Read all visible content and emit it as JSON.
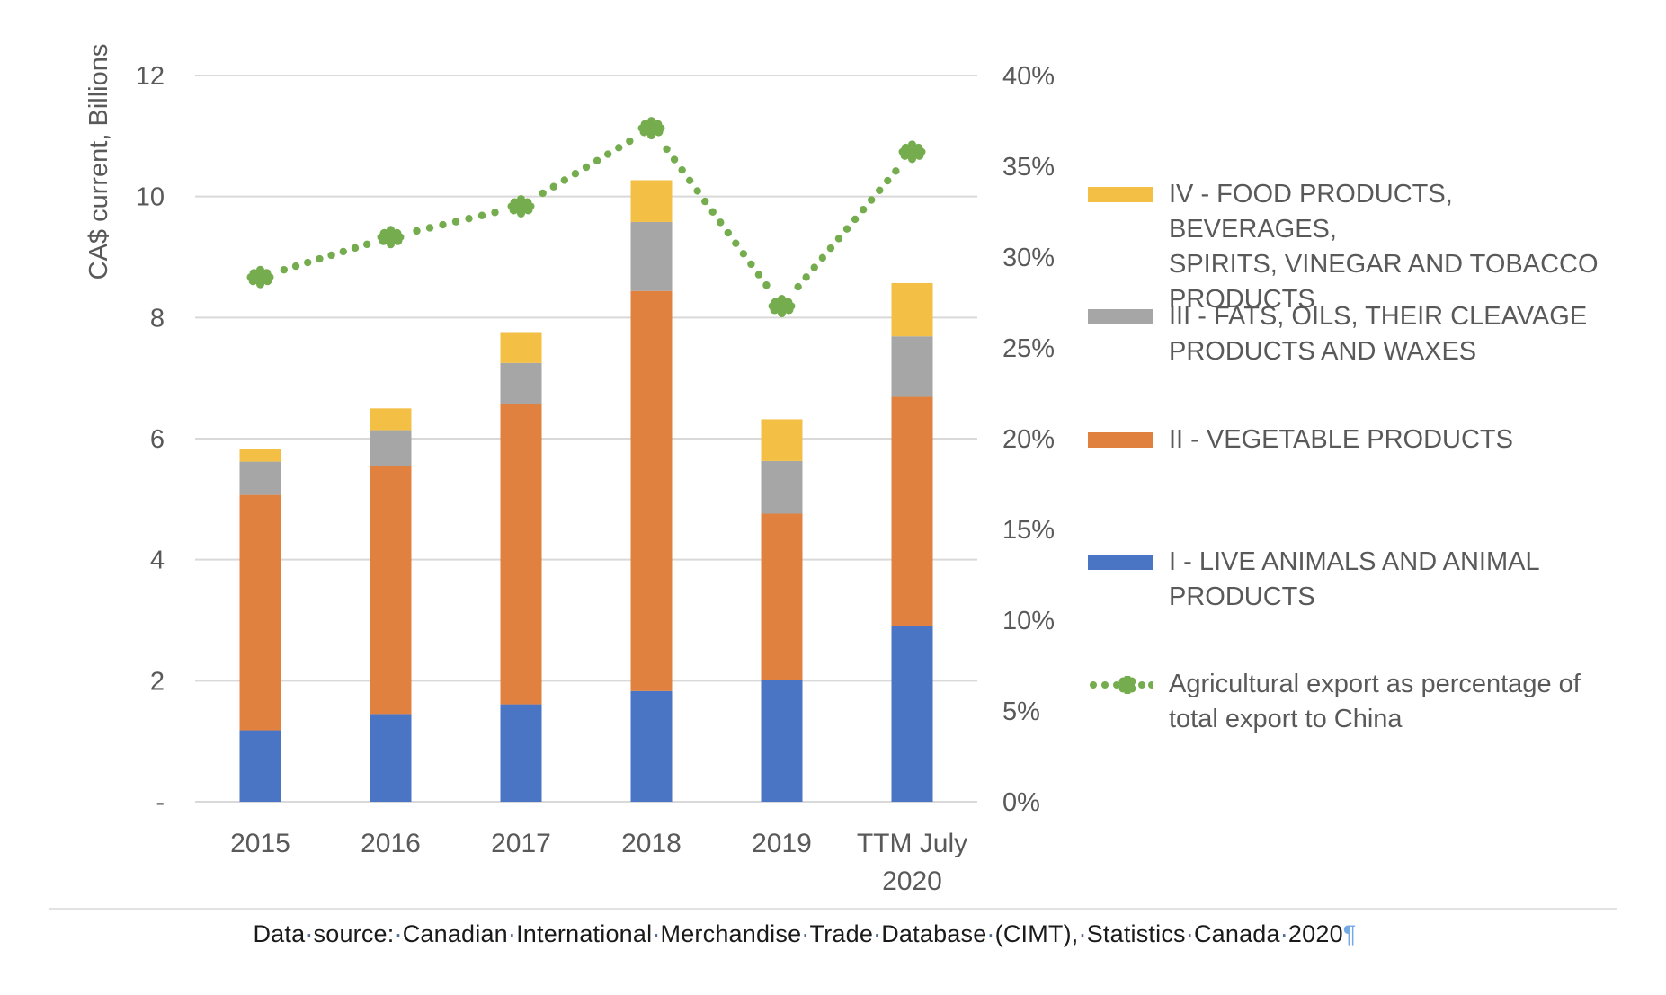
{
  "chart_data": {
    "type": "combo",
    "subtypes": [
      "stacked-bar",
      "line"
    ],
    "categories": [
      "2015",
      "2016",
      "2017",
      "2018",
      "2019",
      "TTM July 2020"
    ],
    "categories_lines": [
      [
        "2015"
      ],
      [
        "2016"
      ],
      [
        "2017"
      ],
      [
        "2018"
      ],
      [
        "2019"
      ],
      [
        "TTM July",
        "2020"
      ]
    ],
    "bar_series": [
      {
        "id": "I",
        "name": "I - LIVE ANIMALS AND ANIMAL PRODUCTS",
        "color": "#4a74c4",
        "values": [
          1.18,
          1.45,
          1.61,
          1.83,
          2.02,
          2.9
        ]
      },
      {
        "id": "II",
        "name": "II - VEGETABLE PRODUCTS",
        "color": "#e0813f",
        "values": [
          3.89,
          4.09,
          4.96,
          6.61,
          2.74,
          3.79
        ]
      },
      {
        "id": "III",
        "name": "III - FATS, OILS, THEIR CLEAVAGE PRODUCTS AND WAXES",
        "color": "#a6a6a6",
        "values": [
          0.55,
          0.6,
          0.68,
          1.14,
          0.87,
          1.0
        ]
      },
      {
        "id": "IV",
        "name": "IV - FOOD PRODUCTS, BEVERAGES, SPIRITS, VINEGAR AND TOBACCO PRODUCTS",
        "color": "#f3bf45",
        "values": [
          0.21,
          0.36,
          0.51,
          0.69,
          0.69,
          0.88
        ]
      }
    ],
    "bar_totals": [
      5.83,
      6.5,
      7.76,
      10.27,
      6.32,
      8.57
    ],
    "line_series": {
      "name": "Agricultural export as percentage of total export to China",
      "color": "#74ac4e",
      "values_pct": [
        28.9,
        31.1,
        32.8,
        37.1,
        27.3,
        35.8
      ]
    },
    "left_axis": {
      "title": "CA$ current, Billions",
      "tick_labels": [
        "12",
        "10",
        "8",
        "6",
        "4",
        "2",
        "-"
      ],
      "tick_values": [
        12,
        10,
        8,
        6,
        4,
        2,
        0
      ],
      "min": 0,
      "max": 12
    },
    "right_axis": {
      "tick_labels": [
        "40%",
        "35%",
        "30%",
        "25%",
        "20%",
        "15%",
        "10%",
        "5%",
        "0%"
      ],
      "tick_values": [
        40,
        35,
        30,
        25,
        20,
        15,
        10,
        5,
        0
      ],
      "min": 0,
      "max": 40
    },
    "grid": true,
    "legend_position": "right"
  },
  "legend": {
    "items": [
      {
        "key": "IV",
        "swatch": "rect",
        "color": "#f3bf45",
        "lines": [
          "IV - FOOD PRODUCTS, BEVERAGES,",
          "SPIRITS, VINEGAR AND TOBACCO",
          "PRODUCTS"
        ]
      },
      {
        "key": "III",
        "swatch": "rect",
        "color": "#a6a6a6",
        "lines": [
          "III - FATS, OILS, THEIR CLEAVAGE",
          "PRODUCTS AND WAXES"
        ]
      },
      {
        "key": "II",
        "swatch": "rect",
        "color": "#e0813f",
        "lines": [
          "II - VEGETABLE PRODUCTS"
        ]
      },
      {
        "key": "I",
        "swatch": "rect",
        "color": "#4a74c4",
        "lines": [
          "I - LIVE ANIMALS AND ANIMAL",
          "PRODUCTS"
        ]
      },
      {
        "key": "AGRI",
        "swatch": "dotted-line",
        "color": "#74ac4e",
        "lines": [
          "Agricultural export as percentage of",
          "total export to China"
        ]
      }
    ]
  },
  "footer": {
    "text": "Data source: Canadian International Merchandise Trade Database (CIMT), Statistics Canada 2020",
    "pilcrow": "¶"
  },
  "colors": {
    "gridline": "#d9d9d9",
    "axis_text": "#595959",
    "footer_text": "#1a1a1a",
    "pilcrow": "#74a9e8",
    "background": "#ffffff"
  }
}
